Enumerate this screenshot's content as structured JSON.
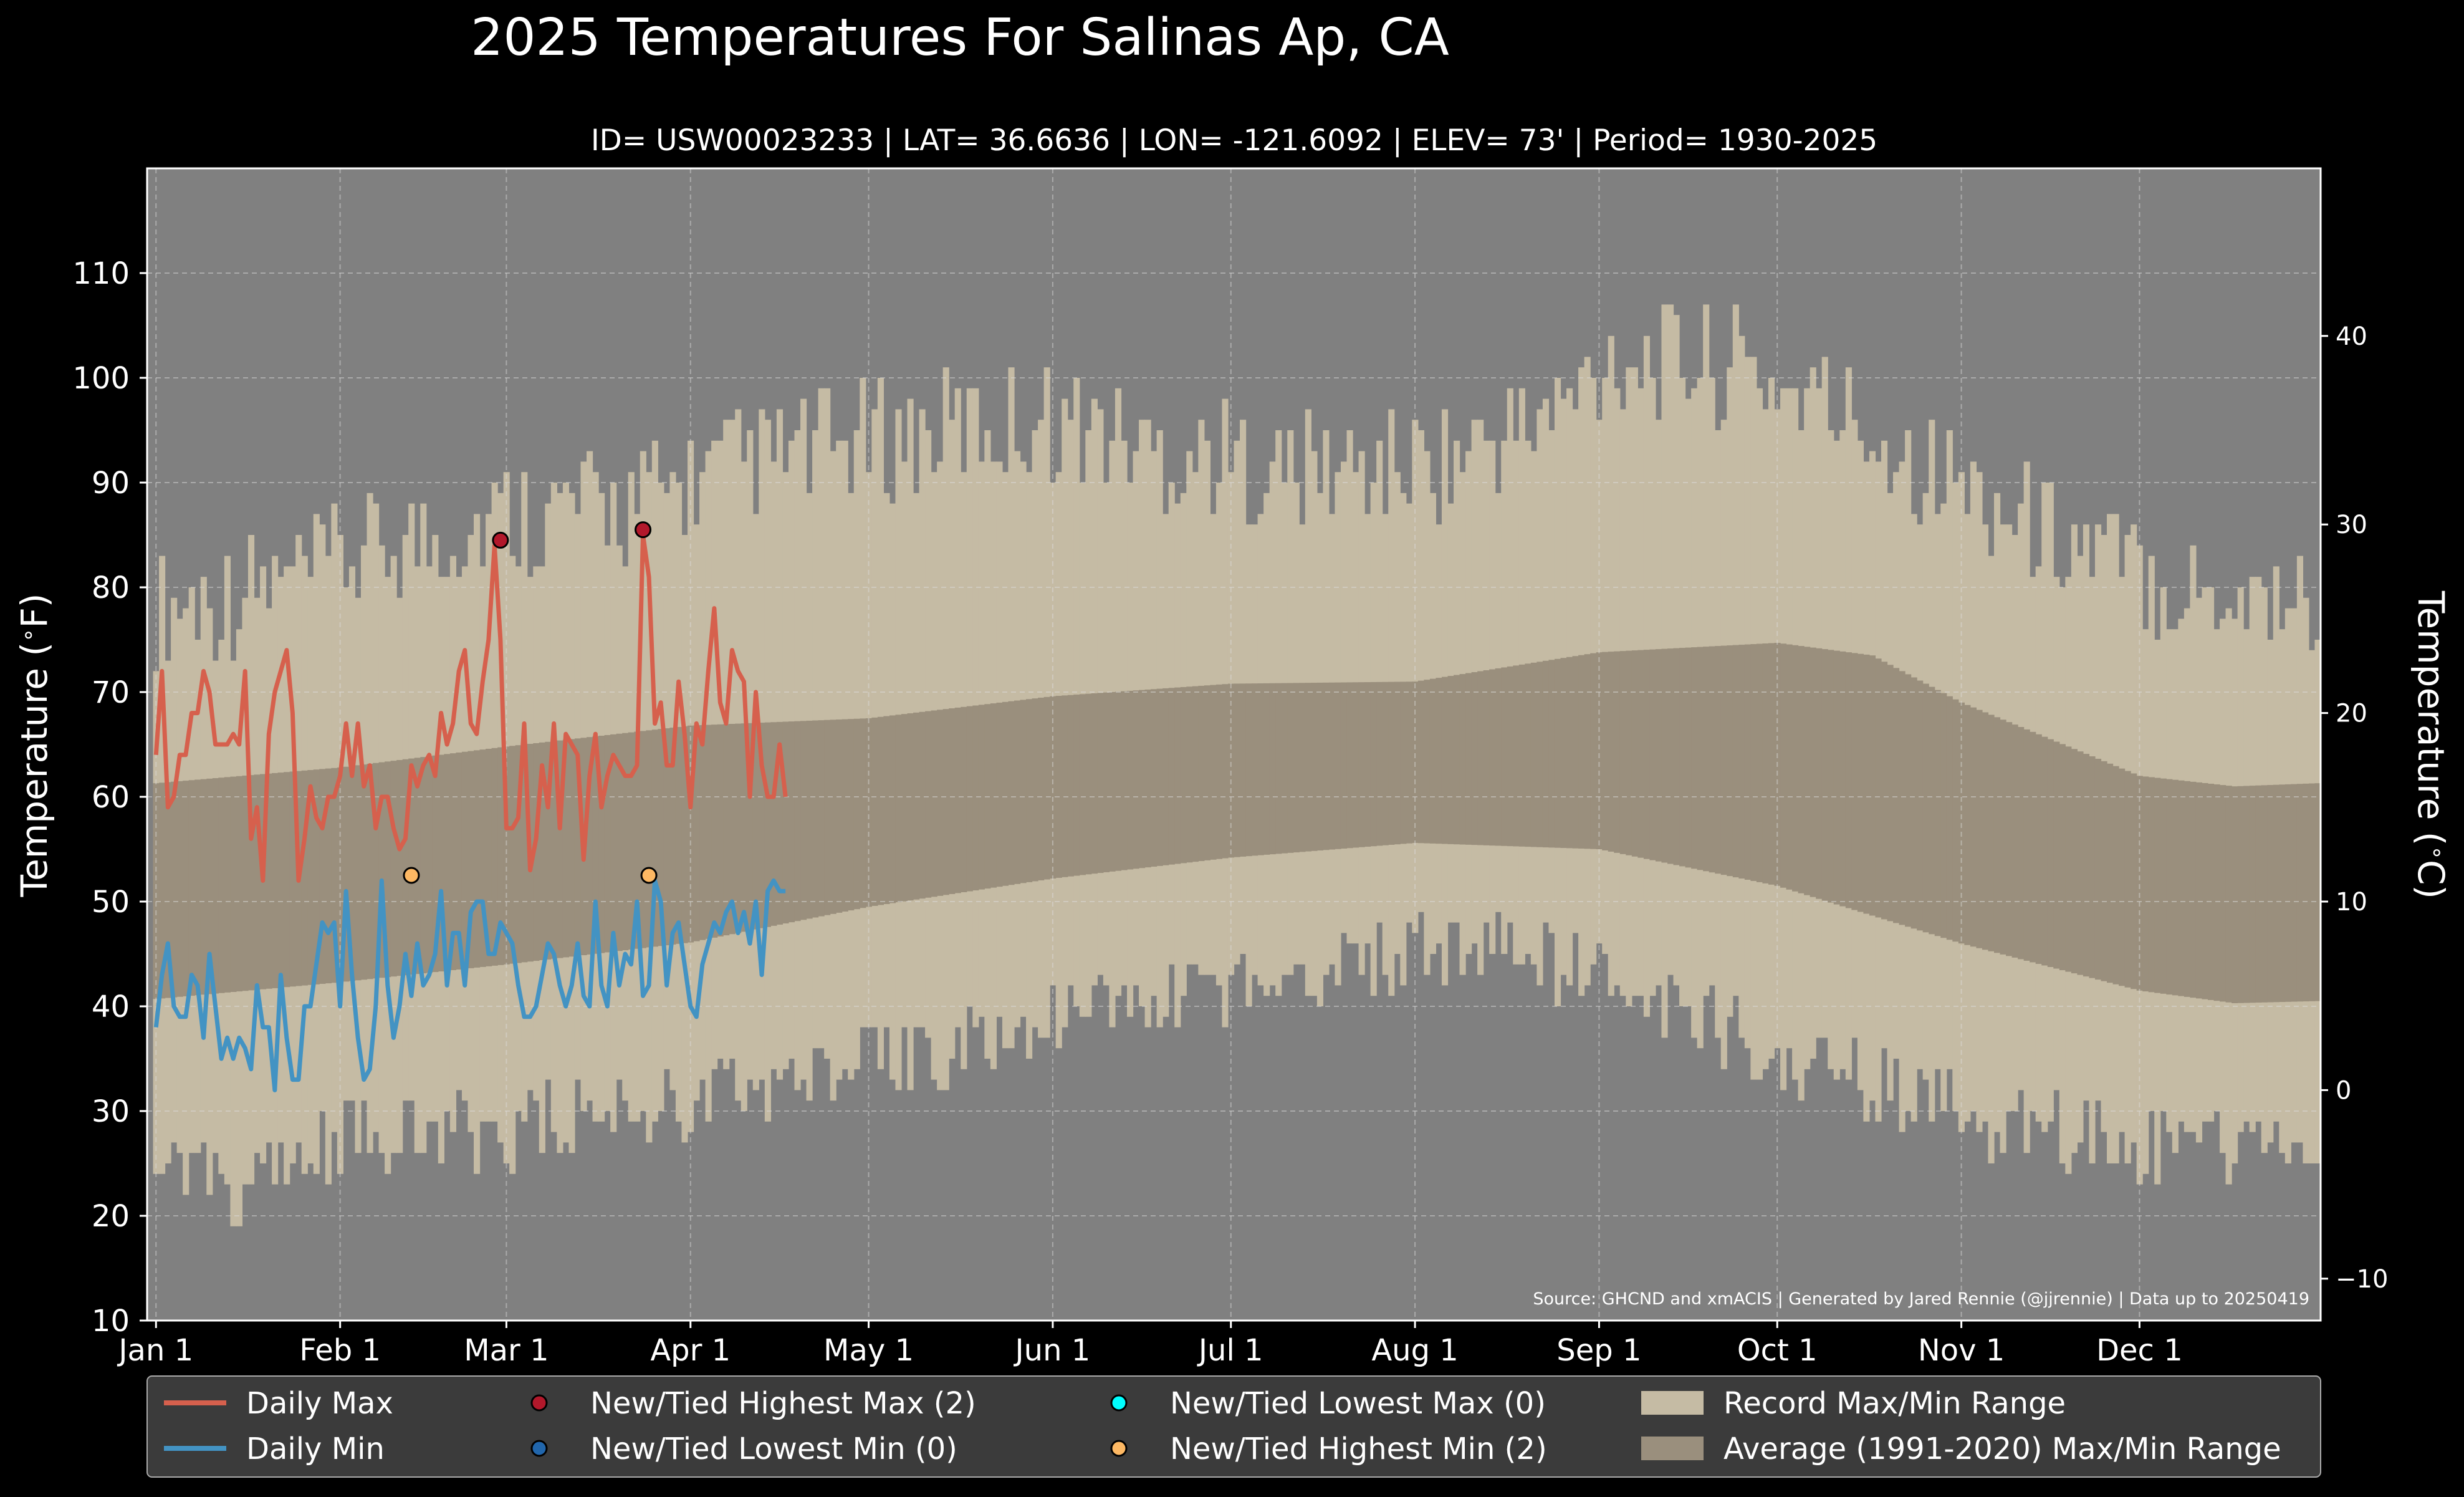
{
  "title": "2025 Temperatures For Salinas Ap, CA",
  "subtitle": "ID= USW00023233 | LAT= 36.6636 | LON= -121.6092 | ELEV= 73' | Period= 1930-2025",
  "source": "Source: GHCND and xmACIS | Generated by Jared Rennie (@jjrennie) | Data up to 20250419",
  "colors": {
    "background": "#000000",
    "plot_bg": "#808080",
    "record_range": "#c5bba4",
    "normal_range": "#9a8f7d",
    "daily_max": "#d6604d",
    "daily_min": "#4393c3",
    "new_high_max": "#b2182b",
    "new_low_min": "#2166ac",
    "new_low_max": "#00ffff",
    "new_high_min": "#fdb863",
    "legend_bg": "#3b3b3b"
  },
  "chart_data": {
    "type": "line",
    "xlabel": "",
    "ylabel": "Temperature ($^\\circ$F)",
    "ylabel_right": "Temperature ($^\\circ$C)",
    "ylim": [
      10,
      120
    ],
    "xlim_day": [
      -1.5,
      364.5
    ],
    "yticks": [
      10,
      20,
      30,
      40,
      50,
      60,
      70,
      80,
      90,
      100,
      110
    ],
    "yticks_right_c": [
      -10,
      0,
      10,
      20,
      30,
      40
    ],
    "xticks": [
      {
        "label": "Jan 1",
        "day": 0
      },
      {
        "label": "Feb 1",
        "day": 31
      },
      {
        "label": "Mar 1",
        "day": 59
      },
      {
        "label": "Apr 1",
        "day": 90
      },
      {
        "label": "May 1",
        "day": 120
      },
      {
        "label": "Jun 1",
        "day": 151
      },
      {
        "label": "Jul 1",
        "day": 181
      },
      {
        "label": "Aug 1",
        "day": 212
      },
      {
        "label": "Sep 1",
        "day": 243
      },
      {
        "label": "Oct 1",
        "day": 273
      },
      {
        "label": "Nov 1",
        "day": 304
      },
      {
        "label": "Dec 1",
        "day": 334
      }
    ],
    "grid": true,
    "record_max_profile": [
      {
        "day": 0,
        "value": 78
      },
      {
        "day": 20,
        "value": 80
      },
      {
        "day": 40,
        "value": 84
      },
      {
        "day": 60,
        "value": 87
      },
      {
        "day": 80,
        "value": 88
      },
      {
        "day": 100,
        "value": 92
      },
      {
        "day": 120,
        "value": 94
      },
      {
        "day": 150,
        "value": 96
      },
      {
        "day": 170,
        "value": 93
      },
      {
        "day": 190,
        "value": 91
      },
      {
        "day": 215,
        "value": 92
      },
      {
        "day": 235,
        "value": 96
      },
      {
        "day": 245,
        "value": 102
      },
      {
        "day": 265,
        "value": 101
      },
      {
        "day": 280,
        "value": 98
      },
      {
        "day": 300,
        "value": 91
      },
      {
        "day": 320,
        "value": 85
      },
      {
        "day": 340,
        "value": 80
      },
      {
        "day": 364,
        "value": 79
      }
    ],
    "record_min_profile": [
      {
        "day": 0,
        "value": 25
      },
      {
        "day": 15,
        "value": 22
      },
      {
        "day": 30,
        "value": 27
      },
      {
        "day": 60,
        "value": 28
      },
      {
        "day": 90,
        "value": 31
      },
      {
        "day": 120,
        "value": 34
      },
      {
        "day": 150,
        "value": 38
      },
      {
        "day": 180,
        "value": 42
      },
      {
        "day": 210,
        "value": 45
      },
      {
        "day": 225,
        "value": 46
      },
      {
        "day": 245,
        "value": 42
      },
      {
        "day": 270,
        "value": 36
      },
      {
        "day": 300,
        "value": 30
      },
      {
        "day": 330,
        "value": 27
      },
      {
        "day": 364,
        "value": 26
      }
    ],
    "normal_max_profile": [
      {
        "day": 0,
        "value": 61.3
      },
      {
        "day": 31,
        "value": 62.8
      },
      {
        "day": 59,
        "value": 64.8
      },
      {
        "day": 90,
        "value": 66.8
      },
      {
        "day": 120,
        "value": 67.5
      },
      {
        "day": 151,
        "value": 69.6
      },
      {
        "day": 181,
        "value": 70.8
      },
      {
        "day": 212,
        "value": 71
      },
      {
        "day": 243,
        "value": 73.8
      },
      {
        "day": 273,
        "value": 74.7
      },
      {
        "day": 289,
        "value": 73.5
      },
      {
        "day": 304,
        "value": 69
      },
      {
        "day": 334,
        "value": 62
      },
      {
        "day": 350,
        "value": 61
      },
      {
        "day": 364,
        "value": 61.3
      }
    ],
    "normal_min_profile": [
      {
        "day": 0,
        "value": 40.7
      },
      {
        "day": 31,
        "value": 42.3
      },
      {
        "day": 59,
        "value": 44
      },
      {
        "day": 90,
        "value": 46.1
      },
      {
        "day": 120,
        "value": 49.5
      },
      {
        "day": 151,
        "value": 52.2
      },
      {
        "day": 181,
        "value": 54.2
      },
      {
        "day": 212,
        "value": 55.6
      },
      {
        "day": 243,
        "value": 55
      },
      {
        "day": 273,
        "value": 51.5
      },
      {
        "day": 304,
        "value": 46
      },
      {
        "day": 334,
        "value": 41.5
      },
      {
        "day": 350,
        "value": 40.3
      },
      {
        "day": 364,
        "value": 40.5
      }
    ],
    "series": [
      {
        "name": "Daily Max",
        "values": [
          64,
          72,
          59,
          60,
          64,
          64,
          68,
          68,
          72,
          70,
          65,
          65,
          65,
          66,
          65,
          72,
          56,
          59,
          52,
          66,
          70,
          72,
          74,
          68,
          52,
          56,
          61,
          58,
          57,
          60,
          60,
          62,
          67,
          62,
          67,
          61,
          63,
          57,
          60,
          60,
          57,
          55,
          56,
          63,
          61,
          63,
          64,
          62,
          68,
          65,
          67,
          72,
          74,
          67,
          66,
          71,
          75,
          84,
          75,
          57,
          57,
          58,
          67,
          53,
          56,
          63,
          59,
          67,
          57,
          66,
          65,
          64,
          54,
          62,
          66,
          59,
          62,
          64,
          63,
          62,
          62,
          63,
          85,
          81,
          67,
          69,
          63,
          63,
          71,
          66,
          59,
          67,
          65,
          72,
          78,
          69,
          67,
          74,
          72,
          71,
          60,
          70,
          63,
          60,
          60,
          65,
          60
        ]
      },
      {
        "name": "Daily Min",
        "values": [
          38,
          43,
          46,
          40,
          39,
          39,
          43,
          42,
          37,
          45,
          40,
          35,
          37,
          35,
          37,
          36,
          34,
          42,
          38,
          38,
          32,
          43,
          37,
          33,
          33,
          40,
          40,
          44,
          48,
          47,
          48,
          40,
          51,
          43,
          37,
          33,
          34,
          40,
          52,
          42,
          37,
          40,
          45,
          41,
          46,
          42,
          43,
          45,
          51,
          42,
          47,
          47,
          42,
          49,
          50,
          50,
          45,
          45,
          48,
          47,
          46,
          42,
          39,
          39,
          40,
          43,
          46,
          45,
          42,
          40,
          42,
          46,
          41,
          40,
          50,
          42,
          40,
          47,
          42,
          45,
          44,
          50,
          41,
          42,
          52,
          50,
          42,
          47,
          48,
          44,
          40,
          39,
          44,
          46,
          48,
          47,
          49,
          50,
          47,
          49,
          46,
          50,
          43,
          51,
          52,
          51,
          51
        ]
      }
    ],
    "record_points": [
      {
        "name": "New/Tied Highest Max (2)",
        "points": [
          {
            "day": 58,
            "value": 84.5
          },
          {
            "day": 82,
            "value": 85.5
          }
        ]
      },
      {
        "name": "New/Tied Lowest Min (0)",
        "points": []
      },
      {
        "name": "New/Tied Lowest Max (0)",
        "points": []
      },
      {
        "name": "New/Tied Highest Min (2)",
        "points": [
          {
            "day": 43,
            "value": 52.5
          },
          {
            "day": 83,
            "value": 52.5
          }
        ]
      }
    ],
    "legend": {
      "placement": "bottom",
      "entries": [
        {
          "label": "Daily Max",
          "kind": "line",
          "color": "#d6604d"
        },
        {
          "label": "New/Tied Highest Max (2)",
          "kind": "dot",
          "color": "#b2182b"
        },
        {
          "label": "New/Tied Lowest Max (0)",
          "kind": "dot",
          "color": "#00ffff"
        },
        {
          "label": "Record Max/Min Range",
          "kind": "patch",
          "color": "#c5bba4"
        },
        {
          "label": "Daily Min",
          "kind": "line",
          "color": "#4393c3"
        },
        {
          "label": "New/Tied Lowest Min (0)",
          "kind": "dot",
          "color": "#2166ac"
        },
        {
          "label": "New/Tied Highest Min (2)",
          "kind": "dot",
          "color": "#fdb863"
        },
        {
          "label": "Average (1991-2020) Max/Min Range",
          "kind": "patch",
          "color": "#9a8f7d"
        }
      ]
    }
  }
}
